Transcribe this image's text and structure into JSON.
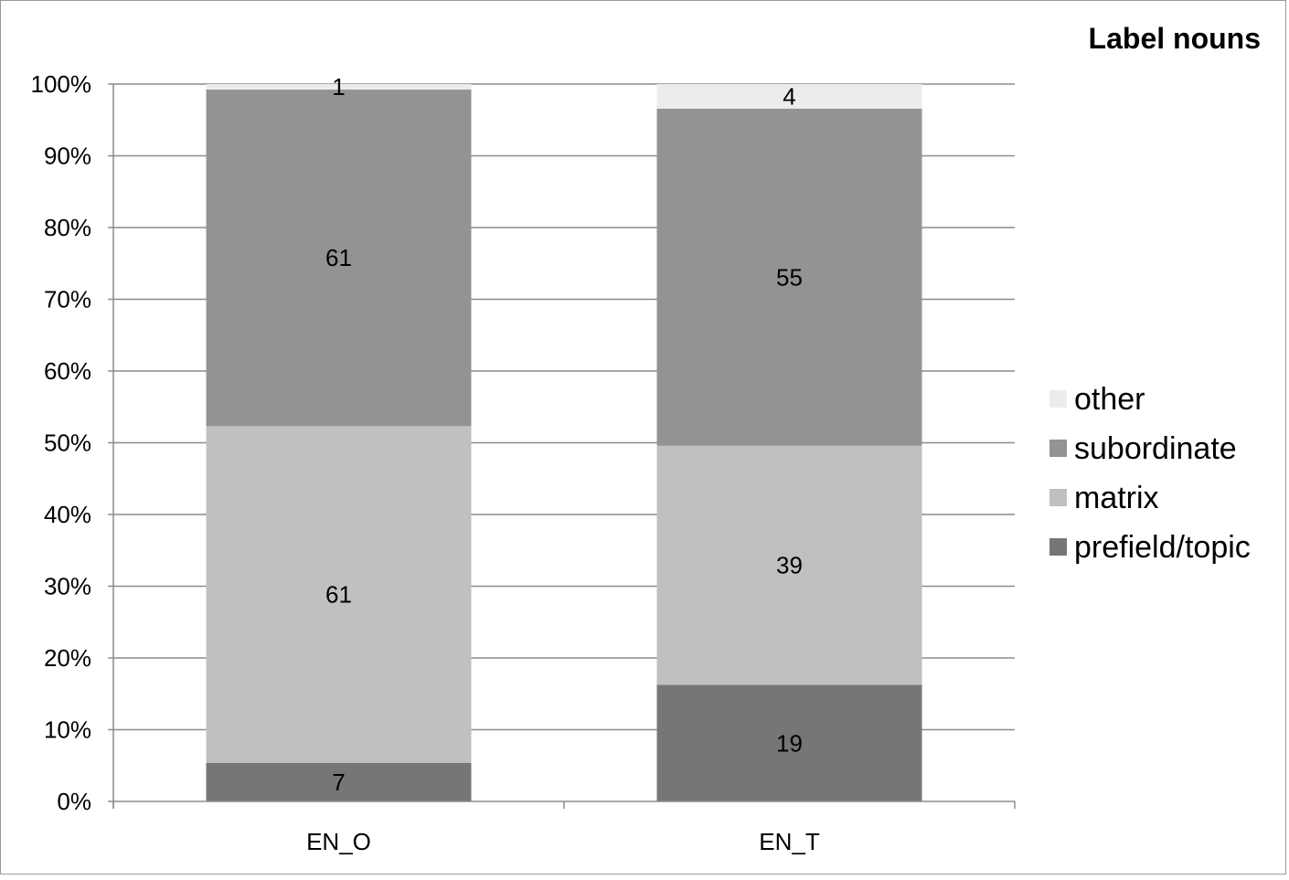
{
  "chart_data": {
    "type": "bar",
    "stacked": true,
    "normalized": true,
    "title": "Label nouns",
    "xlabel": "",
    "ylabel": "",
    "categories": [
      "EN_O",
      "EN_T"
    ],
    "series": [
      {
        "name": "prefield/topic",
        "values": [
          7,
          19
        ],
        "color": "#767676"
      },
      {
        "name": "matrix",
        "values": [
          61,
          39
        ],
        "color": "#c0c0c0"
      },
      {
        "name": "subordinate",
        "values": [
          61,
          55
        ],
        "color": "#939393"
      },
      {
        "name": "other",
        "values": [
          1,
          4
        ],
        "color": "#ececec"
      }
    ],
    "y_ticks": [
      "0%",
      "10%",
      "20%",
      "30%",
      "40%",
      "50%",
      "60%",
      "70%",
      "80%",
      "90%",
      "100%"
    ],
    "ylim": [
      0,
      100
    ],
    "grid": true,
    "legend_position": "right"
  }
}
